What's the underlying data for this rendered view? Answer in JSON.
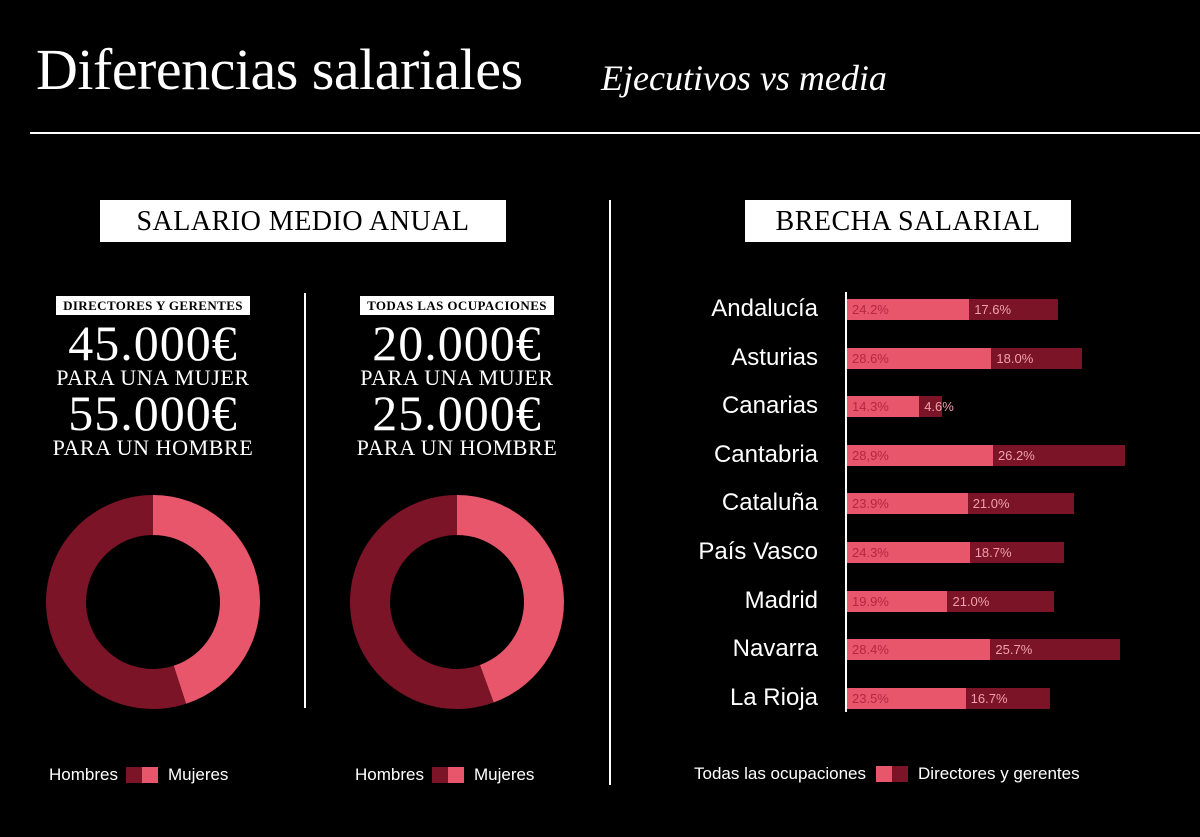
{
  "header": {
    "title": "Diferencias salariales",
    "subtitle": "Ejecutivos vs media"
  },
  "colors": {
    "hombres": "#7a1426",
    "mujeres": "#e8566b",
    "background": "#000000"
  },
  "salario": {
    "heading": "SALARIO MEDIO ANUAL",
    "panels": [
      {
        "tag": "DIRECTORES Y GERENTES",
        "mujer_amount": "45.000€",
        "mujer_label": "PARA UNA MUJER",
        "hombre_amount": "55.000€",
        "hombre_label": "PARA UN HOMBRE",
        "legend_hombres": "Hombres",
        "legend_mujeres": "Mujeres"
      },
      {
        "tag": "TODAS LAS OCUPACIONES",
        "mujer_amount": "20.000€",
        "mujer_label": "PARA UNA MUJER",
        "hombre_amount": "25.000€",
        "hombre_label": "PARA UN HOMBRE",
        "legend_hombres": "Hombres",
        "legend_mujeres": "Mujeres"
      }
    ]
  },
  "brecha": {
    "heading": "BRECHA SALARIAL",
    "legend_todas": "Todas las ocupaciones",
    "legend_directores": "Directores y gerentes"
  },
  "chart_data": [
    {
      "type": "pie",
      "donut": true,
      "categories": [
        "Hombres",
        "Mujeres"
      ],
      "values": [
        55000,
        45000
      ]
    },
    {
      "type": "pie",
      "donut": true,
      "categories": [
        "Hombres",
        "Mujeres"
      ],
      "values": [
        25000,
        20000
      ]
    },
    {
      "type": "bar",
      "orientation": "horizontal",
      "stacked": true,
      "categories": [
        "Andalucía",
        "Asturias",
        "Canarias",
        "Cantabria",
        "Cataluña",
        "País Vasco",
        "Madrid",
        "Navarra",
        "La Rioja"
      ],
      "series": [
        {
          "name": "Todas las ocupaciones",
          "values": [
            24.2,
            28.6,
            14.3,
            28.9,
            23.9,
            24.3,
            19.9,
            28.4,
            23.5
          ],
          "labels": [
            "24.2%",
            "28.6%",
            "14.3%",
            "28,9%",
            "23.9%",
            "24.3%",
            "19.9%",
            "28.4%",
            "23.5%"
          ]
        },
        {
          "name": "Directores y gerentes",
          "values": [
            17.6,
            18.0,
            4.6,
            26.2,
            21.0,
            18.7,
            21.0,
            25.7,
            16.7
          ],
          "labels": [
            "17.6%",
            "18.0%",
            "4.6%",
            "26.2%",
            "21.0%",
            "18.7%",
            "21.0%",
            "25.7%",
            "16.7%"
          ]
        }
      ]
    }
  ]
}
